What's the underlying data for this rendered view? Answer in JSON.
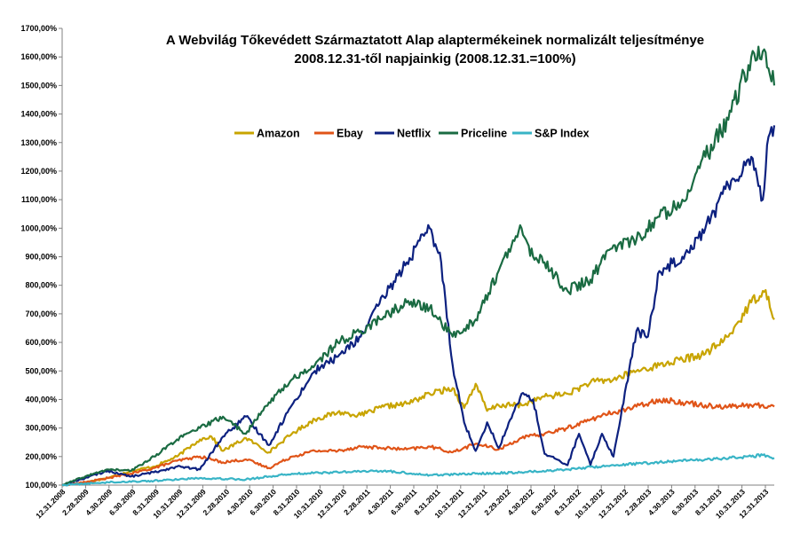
{
  "chart_data": {
    "type": "line",
    "title_line1": "A  Webvilág Tőkevédett Származtatott Alap alaptermékeinek normalizált teljesítménye",
    "title_line2": "2008.12.31-től napjainkig (2008.12.31.=100%)",
    "xlabel": "",
    "ylabel": "",
    "ylim": [
      100,
      1700
    ],
    "y_ticks": [
      "100,00%",
      "200,00%",
      "300,00%",
      "400,00%",
      "500,00%",
      "600,00%",
      "700,00%",
      "800,00%",
      "900,00%",
      "1000,00%",
      "1100,00%",
      "1200,00%",
      "1300,00%",
      "1400,00%",
      "1500,00%",
      "1600,00%",
      "1700,00%"
    ],
    "x_ticks": [
      "12.31.2008",
      "2.28.2009",
      "4.30.2009",
      "6.30.2009",
      "8.31.2009",
      "10.31.2009",
      "12.31.2009",
      "2.28.2010",
      "4.30.2010",
      "6.30.2010",
      "8.31.2010",
      "10.31.2010",
      "12.31.2010",
      "2.28.2011",
      "4.30.2011",
      "6.30.2011",
      "8.31.2011",
      "10.31.2011",
      "12.31.2011",
      "2.29.2012",
      "4.30.2012",
      "6.30.2012",
      "8.31.2012",
      "10.31.2012",
      "12.31.2012",
      "2.28.2013",
      "4.30.2013",
      "6.30.2013",
      "8.31.2013",
      "10.31.2013",
      "12.31.2013"
    ],
    "x_range": [
      0,
      62
    ],
    "legend_position": "top-center",
    "grid": false,
    "series": [
      {
        "name": "Amazon",
        "color": "#c8a400",
        "x": [
          0,
          2,
          4,
          6,
          8,
          10,
          12,
          13,
          14,
          16,
          18,
          20,
          22,
          24,
          26,
          28,
          30,
          32,
          34,
          35,
          36,
          37,
          38,
          40,
          42,
          44,
          46,
          48,
          50,
          52,
          54,
          56,
          57,
          58,
          60,
          61,
          61.5,
          62
        ],
        "y": [
          100,
          110,
          125,
          150,
          165,
          200,
          260,
          270,
          220,
          265,
          215,
          280,
          330,
          355,
          345,
          375,
          385,
          420,
          440,
          370,
          455,
          360,
          380,
          380,
          410,
          420,
          460,
          470,
          500,
          520,
          540,
          560,
          590,
          620,
          740,
          780,
          760,
          680
        ]
      },
      {
        "name": "Ebay",
        "color": "#e05418",
        "x": [
          0,
          2,
          4,
          6,
          8,
          10,
          12,
          14,
          16,
          18,
          20,
          22,
          24,
          26,
          28,
          30,
          32,
          34,
          36,
          38,
          40,
          42,
          44,
          46,
          48,
          50,
          52,
          54,
          56,
          58,
          60,
          62
        ],
        "y": [
          100,
          110,
          125,
          140,
          160,
          185,
          200,
          180,
          190,
          160,
          200,
          220,
          220,
          235,
          230,
          225,
          235,
          215,
          245,
          225,
          265,
          280,
          300,
          330,
          355,
          375,
          400,
          390,
          380,
          375,
          380,
          375
        ]
      },
      {
        "name": "Netflix",
        "color": "#0d2180",
        "x": [
          0,
          2,
          4,
          6,
          8,
          10,
          12,
          14,
          16,
          18,
          20,
          22,
          24,
          26,
          28,
          30,
          32,
          33,
          34,
          35,
          36,
          37,
          38,
          40,
          41,
          42,
          44,
          45,
          46,
          47,
          48,
          50,
          51,
          52,
          54,
          56,
          58,
          60,
          60.5,
          61,
          61.5,
          62
        ],
        "y": [
          100,
          125,
          150,
          130,
          145,
          165,
          155,
          270,
          340,
          240,
          380,
          500,
          550,
          620,
          760,
          880,
          1000,
          880,
          520,
          320,
          220,
          320,
          230,
          420,
          400,
          210,
          170,
          280,
          170,
          280,
          200,
          640,
          620,
          850,
          900,
          1000,
          1150,
          1250,
          1180,
          1100,
          1320,
          1360
        ]
      },
      {
        "name": "Priceline",
        "color": "#1a6b42",
        "x": [
          0,
          2,
          4,
          6,
          8,
          10,
          12,
          14,
          16,
          18,
          20,
          22,
          24,
          26,
          28,
          30,
          32,
          34,
          36,
          38,
          40,
          41,
          42,
          44,
          46,
          48,
          50,
          52,
          54,
          56,
          58,
          60,
          61,
          61.5,
          62
        ],
        "y": [
          100,
          130,
          155,
          150,
          200,
          260,
          300,
          340,
          280,
          390,
          470,
          520,
          600,
          640,
          690,
          740,
          720,
          620,
          680,
          850,
          1000,
          900,
          880,
          780,
          820,
          940,
          960,
          1040,
          1100,
          1250,
          1380,
          1600,
          1620,
          1560,
          1500
        ]
      },
      {
        "name": "S&P Index",
        "color": "#38b4c6",
        "x": [
          0,
          4,
          8,
          12,
          16,
          20,
          24,
          28,
          32,
          36,
          40,
          44,
          48,
          52,
          56,
          60,
          61,
          62
        ],
        "y": [
          100,
          110,
          115,
          125,
          120,
          140,
          145,
          150,
          135,
          140,
          145,
          155,
          170,
          180,
          190,
          200,
          205,
          195
        ]
      }
    ]
  }
}
